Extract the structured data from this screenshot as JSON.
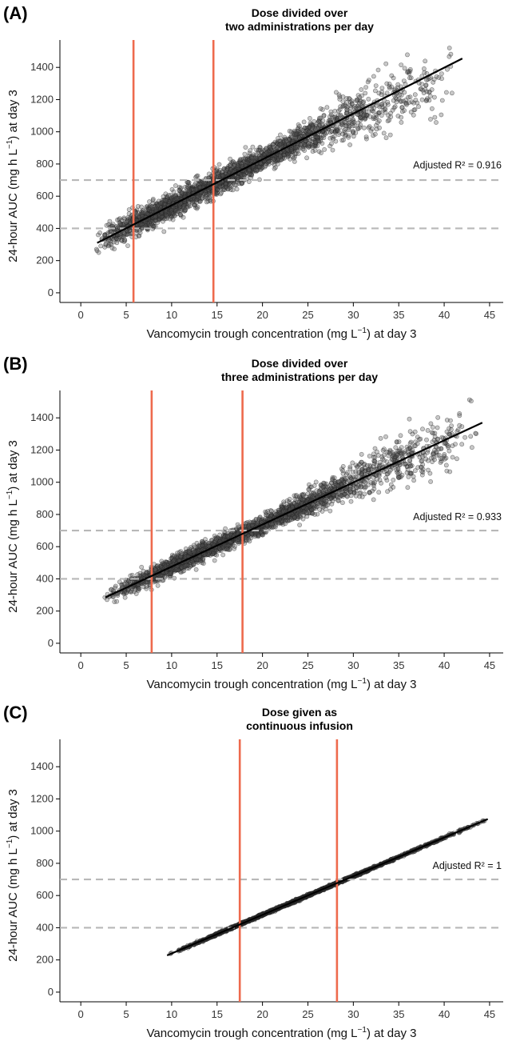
{
  "chart_data": [
    {
      "type": "scatter",
      "panel_label": "(A)",
      "title_lines": [
        "Dose divided over",
        "two administrations per day"
      ],
      "xlabel_parts": [
        "Vancomycin trough concentration (mg L",
        "−1",
        ") at day 3"
      ],
      "ylabel_parts": [
        "24-hour AUC (mg h  L",
        "−1",
        ") at day 3"
      ],
      "xlim": [
        -2.3,
        46.5
      ],
      "ylim": [
        -60,
        1570
      ],
      "xticks": [
        "0",
        "5",
        "10",
        "15",
        "20",
        "25",
        "30",
        "35",
        "40",
        "45"
      ],
      "yticks": [
        "0",
        "200",
        "400",
        "600",
        "800",
        "1000",
        "1200",
        "1400"
      ],
      "hlines": [
        400,
        700
      ],
      "vlines": [
        5.8,
        14.6
      ],
      "fit_line": {
        "x": [
          1.8,
          42.0
        ],
        "y": [
          310,
          1455
        ]
      },
      "annotation": "Adjusted R² =  0.916",
      "annotation_y": 798,
      "scatter_spread": 55,
      "points": {
        "x_min": 1.6,
        "x_max": 42.2,
        "x_mode": 8.5,
        "n": 2600,
        "fan_start": 20,
        "fan": 3.5
      },
      "line_color": "#ee6a4d",
      "point_color": "#555555"
    },
    {
      "type": "scatter",
      "panel_label": "(B)",
      "title_lines": [
        "Dose divided over",
        "three administrations per day"
      ],
      "xlabel_parts": [
        "Vancomycin trough concentration (mg L",
        "−1",
        ") at day 3"
      ],
      "ylabel_parts": [
        "24-hour AUC (mg h  L",
        "−1",
        ") at day 3"
      ],
      "xlim": [
        -2.3,
        46.5
      ],
      "ylim": [
        -60,
        1570
      ],
      "xticks": [
        "0",
        "5",
        "10",
        "15",
        "20",
        "25",
        "30",
        "35",
        "40",
        "45"
      ],
      "yticks": [
        "0",
        "200",
        "400",
        "600",
        "800",
        "1000",
        "1200",
        "1400"
      ],
      "hlines": [
        400,
        700
      ],
      "vlines": [
        7.8,
        17.8
      ],
      "fit_line": {
        "x": [
          2.7,
          44.2
        ],
        "y": [
          285,
          1370
        ]
      },
      "annotation": "Adjusted R² =  0.933",
      "annotation_y": 790,
      "scatter_spread": 40,
      "points": {
        "x_min": 2.4,
        "x_max": 44.5,
        "x_mode": 11.5,
        "n": 2600,
        "fan_start": 22,
        "fan": 2.5
      },
      "line_color": "#ee6a4d",
      "point_color": "#555555"
    },
    {
      "type": "scatter",
      "panel_label": "(C)",
      "title_lines": [
        "Dose given as",
        "continuous infusion"
      ],
      "xlabel_parts": [
        "Vancomycin trough concentration (mg L",
        "−1",
        ") at day 3"
      ],
      "ylabel_parts": [
        "24-hour AUC (mg h  L",
        "−1",
        ") at day 3"
      ],
      "xlim": [
        -2.3,
        46.5
      ],
      "ylim": [
        -60,
        1570
      ],
      "xticks": [
        "0",
        "5",
        "10",
        "15",
        "20",
        "25",
        "30",
        "35",
        "40",
        "45"
      ],
      "yticks": [
        "0",
        "200",
        "400",
        "600",
        "800",
        "1000",
        "1200",
        "1400"
      ],
      "hlines": [
        400,
        700
      ],
      "vlines": [
        17.5,
        28.2
      ],
      "fit_line": {
        "x": [
          9.5,
          44.8
        ],
        "y": [
          228,
          1075
        ]
      },
      "annotation": "Adjusted R² =  1",
      "annotation_y": 790,
      "scatter_spread": 5,
      "points": {
        "x_min": 9.5,
        "x_max": 44.8,
        "x_mode": 20,
        "n": 1400,
        "fan_start": 100,
        "fan": 0
      },
      "line_color": "#ee6a4d",
      "point_color": "#333333"
    }
  ]
}
